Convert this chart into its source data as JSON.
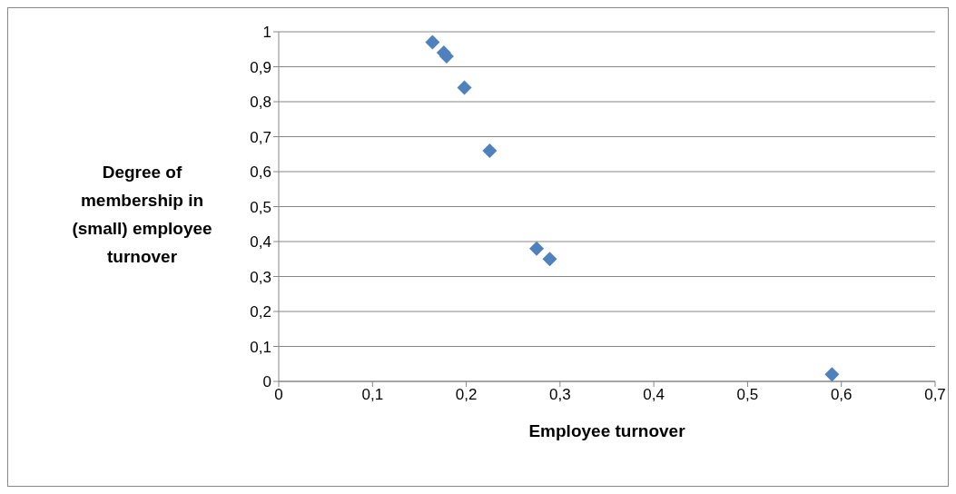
{
  "chart_data": {
    "type": "scatter",
    "xlabel": "Employee turnover",
    "ylabel": "Degree of membership in (small) employee turnover",
    "x": [
      0.164,
      0.176,
      0.179,
      0.198,
      0.225,
      0.275,
      0.289,
      0.59
    ],
    "series": [
      {
        "color": "#4f81bd",
        "values": [
          0.97,
          0.94,
          0.93,
          0.84,
          0.66,
          0.38,
          0.35,
          0.02
        ]
      }
    ],
    "xlim": [
      0,
      0.7
    ],
    "xticks": [
      {
        "value": 0,
        "label": "0"
      },
      {
        "value": 0.1,
        "label": "0,1"
      },
      {
        "value": 0.2,
        "label": "0,2"
      },
      {
        "value": 0.3,
        "label": "0,3"
      },
      {
        "value": 0.4,
        "label": "0,4"
      },
      {
        "value": 0.5,
        "label": "0,5"
      },
      {
        "value": 0.6,
        "label": "0,6"
      },
      {
        "value": 0.7,
        "label": "0,7"
      }
    ],
    "ylim": [
      0,
      1
    ],
    "yticks": [
      {
        "value": 0,
        "label": "0"
      },
      {
        "value": 0.1,
        "label": "0,1"
      },
      {
        "value": 0.2,
        "label": "0,2"
      },
      {
        "value": 0.3,
        "label": "0,3"
      },
      {
        "value": 0.4,
        "label": "0,4"
      },
      {
        "value": 0.5,
        "label": "0,5"
      },
      {
        "value": 0.6,
        "label": "0,6"
      },
      {
        "value": 0.7,
        "label": "0,7"
      },
      {
        "value": 0.8,
        "label": "0,8"
      },
      {
        "value": 0.9,
        "label": "0,9"
      },
      {
        "value": 1,
        "label": "1"
      }
    ],
    "grid": "y",
    "marker": "diamond"
  }
}
